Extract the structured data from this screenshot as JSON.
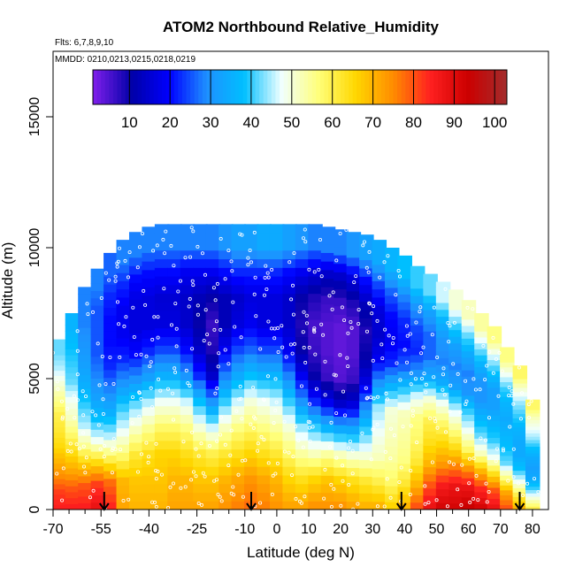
{
  "chart_data": {
    "type": "heatmap",
    "title": "ATOM2 Northbound Relative_Humidity",
    "flights_note": "Flts: 6,7,8,9,10",
    "dates_note": "MMDD: 0210,0213,0215,0218,0219",
    "xlabel": "Latitude (deg N)",
    "ylabel": "Altitude (m)",
    "xlim": [
      -70,
      85
    ],
    "ylim": [
      0,
      17500
    ],
    "x_ticks": [
      -70,
      -55,
      -40,
      -25,
      -10,
      0,
      10,
      20,
      30,
      40,
      50,
      60,
      70,
      80
    ],
    "x_minor_ticks": [
      -65,
      -60,
      -50,
      -45,
      -35,
      -30,
      -20,
      -15,
      -5,
      5,
      15,
      25,
      35,
      45,
      55,
      65,
      75
    ],
    "y_ticks": [
      0,
      5000,
      10000,
      15000
    ],
    "colorbar": {
      "range": [
        1,
        103
      ],
      "ticks": [
        10,
        20,
        30,
        40,
        50,
        60,
        70,
        80,
        90,
        100
      ],
      "colors": [
        "#7a1ee8",
        "#0000a8",
        "#0000ff",
        "#1e90ff",
        "#00bfff",
        "#f0ffff",
        "#ffff7a",
        "#ffd700",
        "#ff8c00",
        "#ff2020",
        "#cc0000",
        "#a52a2a"
      ]
    },
    "arrows_latitude": [
      -54,
      -8,
      39,
      76
    ],
    "profiles": [
      {
        "lat": -68,
        "top": 6500,
        "rh": [
          85,
          82,
          75,
          70,
          65,
          62,
          60,
          55,
          50,
          45,
          42
        ]
      },
      {
        "lat": -64,
        "top": 7500,
        "rh": [
          85,
          80,
          72,
          65,
          58,
          52,
          48,
          42,
          40,
          38,
          36
        ]
      },
      {
        "lat": -60,
        "top": 8500,
        "rh": [
          85,
          80,
          68,
          55,
          45,
          40,
          35,
          32,
          30,
          28,
          28
        ]
      },
      {
        "lat": -56,
        "top": 9200,
        "rh": [
          88,
          82,
          65,
          48,
          38,
          32,
          28,
          25,
          25,
          25,
          28
        ]
      },
      {
        "lat": -52,
        "top": 9800,
        "rh": [
          84,
          78,
          60,
          45,
          35,
          28,
          22,
          20,
          20,
          22,
          26
        ]
      },
      {
        "lat": -48,
        "top": 10300,
        "rh": [
          72,
          70,
          58,
          48,
          40,
          30,
          22,
          18,
          18,
          22,
          28
        ]
      },
      {
        "lat": -44,
        "top": 10600,
        "rh": [
          70,
          68,
          62,
          52,
          42,
          30,
          20,
          16,
          16,
          20,
          28
        ]
      },
      {
        "lat": -40,
        "top": 10800,
        "rh": [
          70,
          68,
          64,
          55,
          45,
          32,
          22,
          16,
          16,
          20,
          28
        ]
      },
      {
        "lat": -36,
        "top": 10900,
        "rh": [
          70,
          68,
          66,
          58,
          48,
          35,
          24,
          16,
          15,
          20,
          28
        ]
      },
      {
        "lat": -32,
        "top": 10900,
        "rh": [
          72,
          70,
          66,
          58,
          48,
          35,
          24,
          16,
          15,
          20,
          28
        ]
      },
      {
        "lat": -28,
        "top": 10900,
        "rh": [
          72,
          70,
          64,
          56,
          46,
          30,
          20,
          14,
          14,
          18,
          28
        ]
      },
      {
        "lat": -24,
        "top": 10900,
        "rh": [
          72,
          68,
          62,
          50,
          38,
          22,
          14,
          10,
          12,
          18,
          28
        ]
      },
      {
        "lat": -20,
        "top": 10900,
        "rh": [
          72,
          68,
          60,
          46,
          30,
          14,
          8,
          6,
          10,
          18,
          28
        ]
      },
      {
        "lat": -16,
        "top": 10900,
        "rh": [
          74,
          70,
          62,
          52,
          40,
          28,
          18,
          12,
          12,
          20,
          30
        ]
      },
      {
        "lat": -12,
        "top": 10900,
        "rh": [
          76,
          72,
          64,
          56,
          46,
          34,
          24,
          16,
          14,
          22,
          32
        ]
      },
      {
        "lat": -8,
        "top": 10900,
        "rh": [
          78,
          74,
          66,
          58,
          50,
          38,
          26,
          18,
          16,
          22,
          32
        ]
      },
      {
        "lat": -4,
        "top": 10900,
        "rh": [
          76,
          72,
          64,
          56,
          48,
          36,
          24,
          16,
          16,
          22,
          34
        ]
      },
      {
        "lat": 0,
        "top": 10900,
        "rh": [
          74,
          70,
          62,
          54,
          46,
          36,
          24,
          16,
          16,
          22,
          34
        ]
      },
      {
        "lat": 4,
        "top": 10900,
        "rh": [
          72,
          66,
          58,
          50,
          40,
          28,
          18,
          14,
          14,
          20,
          32
        ]
      },
      {
        "lat": 8,
        "top": 10900,
        "rh": [
          72,
          64,
          54,
          44,
          30,
          18,
          10,
          8,
          10,
          18,
          30
        ]
      },
      {
        "lat": 12,
        "top": 10900,
        "rh": [
          74,
          66,
          52,
          40,
          22,
          10,
          6,
          5,
          8,
          16,
          28
        ]
      },
      {
        "lat": 16,
        "top": 10800,
        "rh": [
          74,
          68,
          54,
          36,
          18,
          6,
          4,
          4,
          6,
          14,
          28
        ]
      },
      {
        "lat": 20,
        "top": 10700,
        "rh": [
          74,
          66,
          52,
          34,
          14,
          4,
          3,
          3,
          6,
          14,
          28
        ]
      },
      {
        "lat": 24,
        "top": 10600,
        "rh": [
          72,
          64,
          50,
          34,
          16,
          6,
          4,
          4,
          8,
          16,
          30
        ]
      },
      {
        "lat": 28,
        "top": 10500,
        "rh": [
          70,
          62,
          50,
          40,
          28,
          16,
          10,
          8,
          12,
          20,
          32
        ]
      },
      {
        "lat": 32,
        "top": 10300,
        "rh": [
          70,
          60,
          52,
          48,
          44,
          30,
          18,
          14,
          16,
          24,
          34
        ]
      },
      {
        "lat": 36,
        "top": 10000,
        "rh": [
          66,
          58,
          54,
          52,
          50,
          36,
          22,
          18,
          20,
          26,
          36
        ]
      },
      {
        "lat": 40,
        "top": 9700,
        "rh": [
          70,
          62,
          56,
          54,
          52,
          40,
          26,
          20,
          22,
          28,
          38
        ]
      },
      {
        "lat": 44,
        "top": 9300,
        "rh": [
          80,
          70,
          62,
          58,
          56,
          46,
          30,
          22,
          24,
          30,
          40
        ]
      },
      {
        "lat": 48,
        "top": 9000,
        "rh": [
          88,
          80,
          70,
          64,
          60,
          50,
          34,
          26,
          26,
          32,
          42
        ]
      },
      {
        "lat": 52,
        "top": 8700,
        "rh": [
          92,
          86,
          74,
          66,
          58,
          48,
          34,
          28,
          30,
          36,
          46
        ]
      },
      {
        "lat": 56,
        "top": 8400,
        "rh": [
          92,
          88,
          76,
          64,
          54,
          44,
          32,
          28,
          32,
          40,
          50
        ]
      },
      {
        "lat": 60,
        "top": 8000,
        "rh": [
          94,
          88,
          74,
          58,
          48,
          40,
          30,
          28,
          34,
          42,
          52
        ]
      },
      {
        "lat": 64,
        "top": 7500,
        "rh": [
          92,
          84,
          70,
          52,
          42,
          36,
          30,
          30,
          36,
          44,
          54
        ]
      },
      {
        "lat": 68,
        "top": 7000,
        "rh": [
          88,
          80,
          64,
          48,
          40,
          36,
          32,
          32,
          38,
          46,
          56
        ]
      },
      {
        "lat": 72,
        "top": 6200,
        "rh": [
          80,
          72,
          56,
          42,
          38,
          36,
          34,
          36,
          40,
          48,
          56
        ]
      },
      {
        "lat": 76,
        "top": 5500,
        "rh": [
          70,
          60,
          48,
          38,
          34,
          34,
          36,
          40,
          44,
          50,
          58
        ]
      },
      {
        "lat": 80,
        "top": 4200,
        "rh": [
          60,
          50,
          40,
          34,
          32,
          34,
          38,
          44,
          48,
          52,
          58
        ]
      }
    ]
  }
}
